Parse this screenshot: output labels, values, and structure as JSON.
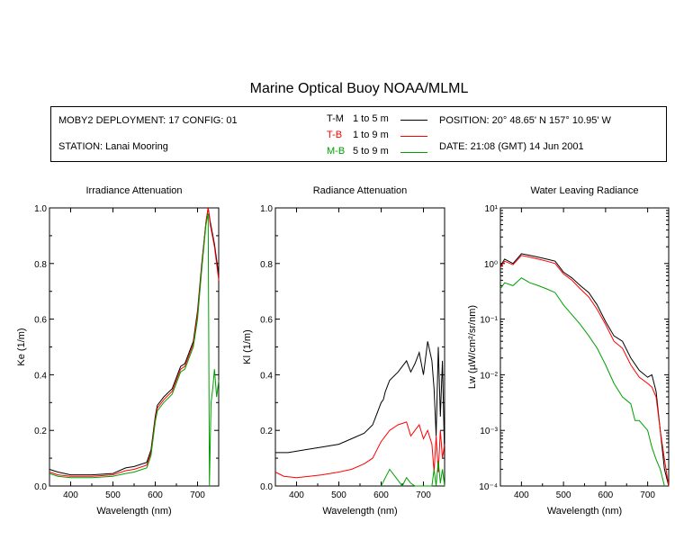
{
  "title": "Marine Optical Buoy NOAA/MLML",
  "info": {
    "deployment": "MOBY2 DEPLOYMENT: 17 CONFIG: 01",
    "station": "STATION: Lanai Mooring",
    "position": "POSITION: 20° 48.65' N   157° 10.95' W",
    "date": "DATE: 21:08 (GMT) 14 Jun 2001",
    "legend": [
      {
        "code": "T-M",
        "range": "1 to 5  m",
        "color": "#000000"
      },
      {
        "code": "T-B",
        "range": "1 to 9  m",
        "color": "#ff0000"
      },
      {
        "code": "M-B",
        "range": "5 to 9  m",
        "color": "#00a000"
      }
    ]
  },
  "chart_data": [
    {
      "type": "line",
      "title": "Irradiance Attenuation",
      "xlabel": "Wavelength (nm)",
      "ylabel": "Ke  (1/m)",
      "xlim": [
        350,
        750
      ],
      "ylim": [
        0,
        1.0
      ],
      "xticks": [
        400,
        500,
        600,
        700
      ],
      "yticks": [
        0.0,
        0.2,
        0.4,
        0.6,
        0.8,
        1.0
      ],
      "ytick_labels": [
        "0.0",
        "0.2",
        "0.4",
        "0.6",
        "0.8",
        "1.0"
      ],
      "series": [
        {
          "code": "T-M",
          "color": "#000000",
          "x": [
            350,
            370,
            400,
            450,
            500,
            530,
            550,
            580,
            590,
            600,
            605,
            620,
            640,
            660,
            670,
            690,
            700,
            710,
            720,
            725,
            730,
            740,
            750
          ],
          "y": [
            0.06,
            0.05,
            0.04,
            0.04,
            0.045,
            0.065,
            0.07,
            0.085,
            0.13,
            0.25,
            0.29,
            0.32,
            0.35,
            0.43,
            0.44,
            0.52,
            0.63,
            0.8,
            0.95,
            1.0,
            0.95,
            0.87,
            0.76
          ]
        },
        {
          "code": "T-B",
          "color": "#ff0000",
          "x": [
            350,
            370,
            400,
            450,
            500,
            530,
            550,
            580,
            590,
            600,
            605,
            620,
            640,
            660,
            670,
            690,
            700,
            710,
            720,
            725,
            730,
            740,
            750
          ],
          "y": [
            0.05,
            0.04,
            0.035,
            0.035,
            0.04,
            0.055,
            0.06,
            0.075,
            0.12,
            0.24,
            0.28,
            0.31,
            0.34,
            0.42,
            0.43,
            0.51,
            0.62,
            0.79,
            0.95,
            1.0,
            0.94,
            0.86,
            0.74
          ]
        },
        {
          "code": "M-B",
          "color": "#00a000",
          "x": [
            350,
            370,
            400,
            450,
            500,
            530,
            550,
            580,
            590,
            600,
            605,
            620,
            640,
            660,
            670,
            690,
            700,
            710,
            720,
            725,
            728,
            732,
            736,
            740,
            745,
            750
          ],
          "y": [
            0.045,
            0.035,
            0.03,
            0.03,
            0.035,
            0.045,
            0.05,
            0.065,
            0.11,
            0.23,
            0.27,
            0.3,
            0.33,
            0.41,
            0.42,
            0.5,
            0.6,
            0.78,
            0.94,
            0.98,
            0.0,
            0.3,
            0.35,
            0.42,
            0.32,
            0.38
          ]
        }
      ]
    },
    {
      "type": "line",
      "title": "Radiance Attenuation",
      "xlabel": "Wavelength (nm)",
      "ylabel": "Kl  (1/m)",
      "xlim": [
        350,
        750
      ],
      "ylim": [
        0,
        1.0
      ],
      "xticks": [
        400,
        500,
        600,
        700
      ],
      "yticks": [
        0.0,
        0.2,
        0.4,
        0.6,
        0.8,
        1.0
      ],
      "ytick_labels": [
        "0.0",
        "0.2",
        "0.4",
        "0.6",
        "0.8",
        "1.0"
      ],
      "series": [
        {
          "code": "T-M",
          "color": "#000000",
          "x": [
            350,
            380,
            420,
            460,
            500,
            530,
            560,
            580,
            590,
            600,
            605,
            610,
            620,
            640,
            660,
            670,
            680,
            690,
            700,
            710,
            720,
            725,
            730,
            735,
            740,
            745,
            750
          ],
          "y": [
            0.12,
            0.12,
            0.13,
            0.14,
            0.15,
            0.17,
            0.19,
            0.22,
            0.26,
            0.3,
            0.31,
            0.34,
            0.38,
            0.41,
            0.45,
            0.41,
            0.44,
            0.48,
            0.4,
            0.52,
            0.45,
            0.35,
            0.18,
            0.5,
            0.25,
            0.45,
            0.1
          ]
        },
        {
          "code": "T-B",
          "color": "#ff0000",
          "x": [
            350,
            370,
            400,
            430,
            460,
            500,
            530,
            560,
            580,
            590,
            600,
            605,
            610,
            620,
            640,
            660,
            670,
            680,
            690,
            700,
            710,
            720,
            725,
            730,
            735,
            740,
            745,
            750
          ],
          "y": [
            0.05,
            0.035,
            0.03,
            0.035,
            0.04,
            0.05,
            0.06,
            0.08,
            0.1,
            0.13,
            0.16,
            0.17,
            0.18,
            0.2,
            0.22,
            0.23,
            0.18,
            0.2,
            0.22,
            0.17,
            0.2,
            0.15,
            0.05,
            0.18,
            0.05,
            0.2,
            0.1,
            0.15
          ]
        },
        {
          "code": "M-B",
          "color": "#00a000",
          "x": [
            600,
            610,
            620,
            630,
            640,
            650,
            660,
            670,
            680,
            690,
            700,
            710,
            720,
            725,
            730,
            735,
            740,
            745,
            750
          ],
          "y": [
            0.0,
            0.03,
            0.06,
            0.04,
            0.02,
            0.0,
            0.03,
            0.01,
            0.0,
            0.0,
            0.0,
            0.0,
            0.0,
            0.06,
            0.0,
            0.09,
            0.01,
            0.06,
            0.0
          ]
        }
      ]
    },
    {
      "type": "line",
      "title": "Water Leaving Radiance",
      "xlabel": "Wavelength (nm)",
      "ylabel": "Lw  (µW/cm²/sr/nm)",
      "xlim": [
        350,
        750
      ],
      "ylim": [
        0.0001,
        10
      ],
      "yscale": "log",
      "xticks": [
        400,
        500,
        600,
        700
      ],
      "yticks": [
        0.0001,
        0.001,
        0.01,
        0.1,
        1,
        10
      ],
      "ytick_labels": [
        "10⁻⁴",
        "10⁻³",
        "10⁻²",
        "10⁻¹",
        "10⁰",
        "10¹"
      ],
      "series": [
        {
          "code": "T-M",
          "color": "#000000",
          "x": [
            350,
            360,
            380,
            400,
            420,
            440,
            460,
            480,
            500,
            520,
            540,
            560,
            580,
            600,
            620,
            640,
            660,
            680,
            700,
            710,
            720,
            730,
            740,
            750
          ],
          "y": [
            0.9,
            1.2,
            1.0,
            1.5,
            1.4,
            1.3,
            1.2,
            1.1,
            0.7,
            0.55,
            0.4,
            0.3,
            0.18,
            0.09,
            0.05,
            0.04,
            0.02,
            0.012,
            0.009,
            0.01,
            0.005,
            0.001,
            0.0002,
            0.0001
          ]
        },
        {
          "code": "T-B",
          "color": "#ff0000",
          "x": [
            350,
            360,
            380,
            400,
            420,
            440,
            460,
            480,
            500,
            520,
            540,
            560,
            580,
            600,
            620,
            640,
            660,
            680,
            700,
            710,
            720,
            730,
            740,
            750
          ],
          "y": [
            0.85,
            1.1,
            0.95,
            1.4,
            1.3,
            1.2,
            1.1,
            1.0,
            0.65,
            0.5,
            0.35,
            0.25,
            0.15,
            0.08,
            0.04,
            0.03,
            0.015,
            0.009,
            0.007,
            0.006,
            0.004,
            0.001,
            0.0003,
            0.0001
          ]
        },
        {
          "code": "M-B",
          "color": "#00a000",
          "x": [
            350,
            360,
            380,
            400,
            420,
            440,
            460,
            480,
            500,
            520,
            540,
            560,
            580,
            600,
            620,
            640,
            660,
            670,
            680,
            700,
            710,
            720,
            730,
            740
          ],
          "y": [
            0.35,
            0.45,
            0.4,
            0.55,
            0.45,
            0.4,
            0.35,
            0.3,
            0.18,
            0.12,
            0.08,
            0.05,
            0.03,
            0.015,
            0.007,
            0.004,
            0.003,
            0.0015,
            0.0015,
            0.001,
            0.0005,
            0.0003,
            0.0002,
            0.0001
          ]
        }
      ]
    }
  ]
}
